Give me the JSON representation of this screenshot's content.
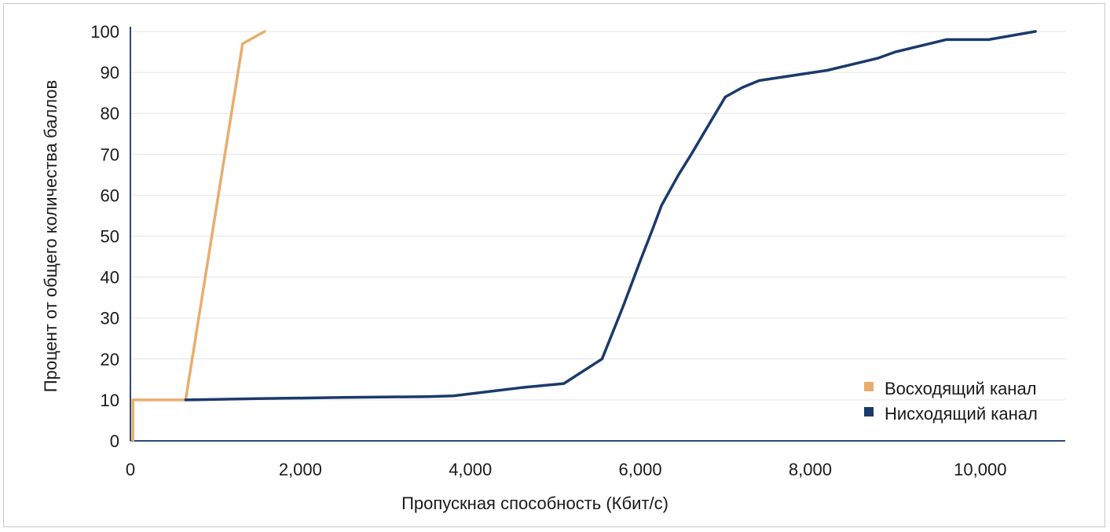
{
  "chart_data": {
    "type": "line",
    "title": "",
    "xlabel": "Пропускная способность (Кбит/с)",
    "ylabel": "Процент от общего количества баллов",
    "xlim": [
      0,
      11000
    ],
    "ylim": [
      0,
      100
    ],
    "x_ticks": [
      0,
      2000,
      4000,
      6000,
      8000,
      10000
    ],
    "x_tick_labels": [
      "0",
      "2,000",
      "4,000",
      "6,000",
      "8,000",
      "10,000"
    ],
    "y_ticks": [
      0,
      10,
      20,
      30,
      40,
      50,
      60,
      70,
      80,
      90,
      100
    ],
    "y_tick_labels": [
      "0",
      "10",
      "20",
      "30",
      "40",
      "50",
      "60",
      "70",
      "80",
      "90",
      "100"
    ],
    "grid": "horizontal",
    "legend_position": "bottom-right",
    "series": [
      {
        "name": "Восходящий канал",
        "color": "#e8ad6e",
        "points": [
          [
            30,
            0
          ],
          [
            30,
            10
          ],
          [
            650,
            10
          ],
          [
            1320,
            97
          ],
          [
            1580,
            100
          ]
        ]
      },
      {
        "name": "Нисходящий канал",
        "color": "#1b3a6b",
        "points": [
          [
            650,
            10
          ],
          [
            1500,
            10.3
          ],
          [
            2500,
            10.6
          ],
          [
            3500,
            10.8
          ],
          [
            3800,
            11
          ],
          [
            4600,
            13
          ],
          [
            5100,
            14
          ],
          [
            5400,
            18
          ],
          [
            5550,
            20
          ],
          [
            5800,
            33
          ],
          [
            6000,
            44
          ],
          [
            6150,
            52
          ],
          [
            6250,
            57.5
          ],
          [
            6450,
            65
          ],
          [
            6600,
            70
          ],
          [
            6800,
            77
          ],
          [
            7000,
            84
          ],
          [
            7200,
            86.3
          ],
          [
            7400,
            88
          ],
          [
            8200,
            90.5
          ],
          [
            8800,
            93.5
          ],
          [
            9000,
            95
          ],
          [
            9600,
            98
          ],
          [
            10100,
            98
          ],
          [
            10650,
            100
          ]
        ]
      }
    ]
  }
}
